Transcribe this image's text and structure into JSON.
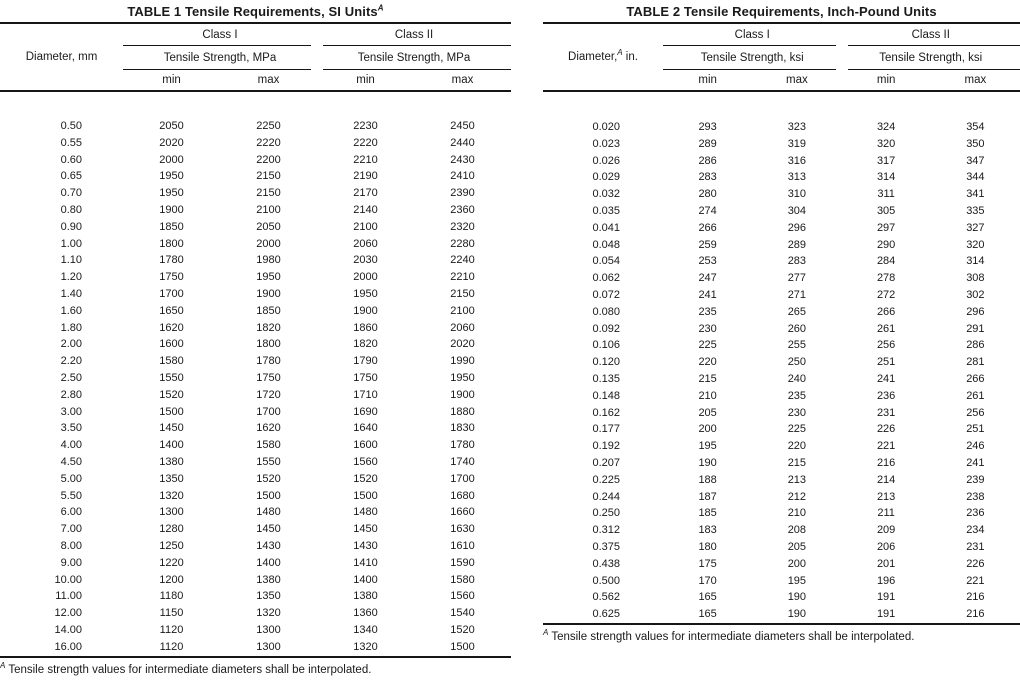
{
  "colors": {
    "background": "#ffffff",
    "text": "#1a1a1a",
    "rule": "#161616"
  },
  "tables": [
    {
      "title": {
        "text": "TABLE 1 Tensile Requirements, SI Units",
        "sup": "A"
      },
      "diameter_header": {
        "pre": "Diameter, mm",
        "sup": "",
        "post": ""
      },
      "class_headers": [
        "Class I",
        "Class II"
      ],
      "subheaders": [
        "Tensile Strength, MPa",
        "Tensile Strength, MPa"
      ],
      "col_headers": [
        "min",
        "max",
        "min",
        "max"
      ],
      "rows": [
        [
          "0.50",
          "2050",
          "2250",
          "2230",
          "2450"
        ],
        [
          "0.55",
          "2020",
          "2220",
          "2220",
          "2440"
        ],
        [
          "0.60",
          "2000",
          "2200",
          "2210",
          "2430"
        ],
        [
          "0.65",
          "1950",
          "2150",
          "2190",
          "2410"
        ],
        [
          "0.70",
          "1950",
          "2150",
          "2170",
          "2390"
        ],
        [
          "0.80",
          "1900",
          "2100",
          "2140",
          "2360"
        ],
        [
          "0.90",
          "1850",
          "2050",
          "2100",
          "2320"
        ],
        [
          "1.00",
          "1800",
          "2000",
          "2060",
          "2280"
        ],
        [
          "1.10",
          "1780",
          "1980",
          "2030",
          "2240"
        ],
        [
          "1.20",
          "1750",
          "1950",
          "2000",
          "2210"
        ],
        [
          "1.40",
          "1700",
          "1900",
          "1950",
          "2150"
        ],
        [
          "1.60",
          "1650",
          "1850",
          "1900",
          "2100"
        ],
        [
          "1.80",
          "1620",
          "1820",
          "1860",
          "2060"
        ],
        [
          "2.00",
          "1600",
          "1800",
          "1820",
          "2020"
        ],
        [
          "2.20",
          "1580",
          "1780",
          "1790",
          "1990"
        ],
        [
          "2.50",
          "1550",
          "1750",
          "1750",
          "1950"
        ],
        [
          "2.80",
          "1520",
          "1720",
          "1710",
          "1900"
        ],
        [
          "3.00",
          "1500",
          "1700",
          "1690",
          "1880"
        ],
        [
          "3.50",
          "1450",
          "1620",
          "1640",
          "1830"
        ],
        [
          "4.00",
          "1400",
          "1580",
          "1600",
          "1780"
        ],
        [
          "4.50",
          "1380",
          "1550",
          "1560",
          "1740"
        ],
        [
          "5.00",
          "1350",
          "1520",
          "1520",
          "1700"
        ],
        [
          "5.50",
          "1320",
          "1500",
          "1500",
          "1680"
        ],
        [
          "6.00",
          "1300",
          "1480",
          "1480",
          "1660"
        ],
        [
          "7.00",
          "1280",
          "1450",
          "1450",
          "1630"
        ],
        [
          "8.00",
          "1250",
          "1430",
          "1430",
          "1610"
        ],
        [
          "9.00",
          "1220",
          "1400",
          "1410",
          "1590"
        ],
        [
          "10.00",
          "1200",
          "1380",
          "1400",
          "1580"
        ],
        [
          "11.00",
          "1180",
          "1350",
          "1380",
          "1560"
        ],
        [
          "12.00",
          "1150",
          "1320",
          "1360",
          "1540"
        ],
        [
          "14.00",
          "1120",
          "1300",
          "1340",
          "1520"
        ],
        [
          "16.00",
          "1120",
          "1300",
          "1320",
          "1500"
        ]
      ],
      "footnote": {
        "sup": "A",
        "text": " Tensile strength values for intermediate diameters shall be interpolated."
      }
    },
    {
      "title": {
        "text": "TABLE 2 Tensile Requirements, Inch-Pound Units",
        "sup": ""
      },
      "diameter_header": {
        "pre": "Diameter,",
        "sup": "A",
        "post": " in."
      },
      "class_headers": [
        "Class I",
        "Class II"
      ],
      "subheaders": [
        "Tensile Strength, ksi",
        "Tensile Strength, ksi"
      ],
      "col_headers": [
        "min",
        "max",
        "min",
        "max"
      ],
      "rows": [
        [
          "0.020",
          "293",
          "323",
          "324",
          "354"
        ],
        [
          "0.023",
          "289",
          "319",
          "320",
          "350"
        ],
        [
          "0.026",
          "286",
          "316",
          "317",
          "347"
        ],
        [
          "0.029",
          "283",
          "313",
          "314",
          "344"
        ],
        [
          "0.032",
          "280",
          "310",
          "311",
          "341"
        ],
        [
          "0.035",
          "274",
          "304",
          "305",
          "335"
        ],
        [
          "0.041",
          "266",
          "296",
          "297",
          "327"
        ],
        [
          "0.048",
          "259",
          "289",
          "290",
          "320"
        ],
        [
          "0.054",
          "253",
          "283",
          "284",
          "314"
        ],
        [
          "0.062",
          "247",
          "277",
          "278",
          "308"
        ],
        [
          "0.072",
          "241",
          "271",
          "272",
          "302"
        ],
        [
          "0.080",
          "235",
          "265",
          "266",
          "296"
        ],
        [
          "0.092",
          "230",
          "260",
          "261",
          "291"
        ],
        [
          "0.106",
          "225",
          "255",
          "256",
          "286"
        ],
        [
          "0.120",
          "220",
          "250",
          "251",
          "281"
        ],
        [
          "0.135",
          "215",
          "240",
          "241",
          "266"
        ],
        [
          "0.148",
          "210",
          "235",
          "236",
          "261"
        ],
        [
          "0.162",
          "205",
          "230",
          "231",
          "256"
        ],
        [
          "0.177",
          "200",
          "225",
          "226",
          "251"
        ],
        [
          "0.192",
          "195",
          "220",
          "221",
          "246"
        ],
        [
          "0.207",
          "190",
          "215",
          "216",
          "241"
        ],
        [
          "0.225",
          "188",
          "213",
          "214",
          "239"
        ],
        [
          "0.244",
          "187",
          "212",
          "213",
          "238"
        ],
        [
          "0.250",
          "185",
          "210",
          "211",
          "236"
        ],
        [
          "0.312",
          "183",
          "208",
          "209",
          "234"
        ],
        [
          "0.375",
          "180",
          "205",
          "206",
          "231"
        ],
        [
          "0.438",
          "175",
          "200",
          "201",
          "226"
        ],
        [
          "0.500",
          "170",
          "195",
          "196",
          "221"
        ],
        [
          "0.562",
          "165",
          "190",
          "191",
          "216"
        ],
        [
          "0.625",
          "165",
          "190",
          "191",
          "216"
        ]
      ],
      "footnote": {
        "sup": "A",
        "text": " Tensile strength values for intermediate diameters shall be interpolated."
      }
    }
  ]
}
